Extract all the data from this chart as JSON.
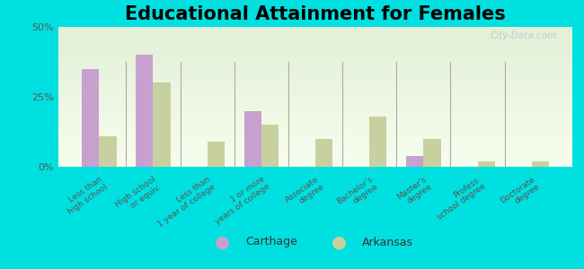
{
  "title": "Educational Attainment for Females",
  "categories": [
    "Less than\nhigh school",
    "High school\nor equiv.",
    "Less than\n1 year of college",
    "1 or more\nyears of college",
    "Associate\ndegree",
    "Bachelor's\ndegree",
    "Master's\ndegree",
    "Profess.\nschool degree",
    "Doctorate\ndegree"
  ],
  "carthage_values": [
    35,
    40,
    0,
    20,
    0,
    0,
    4,
    0,
    0
  ],
  "arkansas_values": [
    11,
    30,
    9,
    15,
    10,
    18,
    10,
    2,
    2
  ],
  "carthage_color": "#c8a0d0",
  "arkansas_color": "#c8d0a0",
  "ylim": [
    0,
    50
  ],
  "yticks": [
    0,
    25,
    50
  ],
  "ytick_labels": [
    "0%",
    "25%",
    "50%"
  ],
  "outer_background": "#00e0e0",
  "legend_carthage": "Carthage",
  "legend_arkansas": "Arkansas",
  "title_fontsize": 15,
  "watermark": "City-Data.com"
}
